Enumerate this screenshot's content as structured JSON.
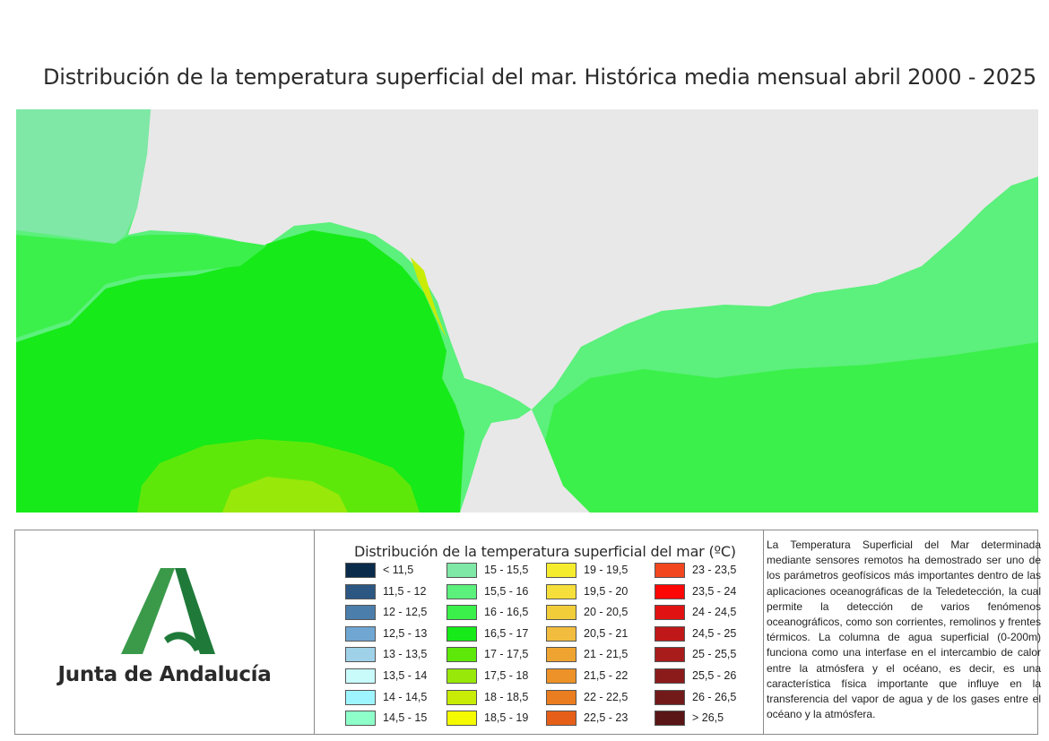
{
  "title": "Distribución de la temperatura superficial del mar. Histórica media mensual abril 2000 - 2025",
  "logo": {
    "text": "Junta de Andalucía",
    "colors": {
      "dark": "#1f7a3a",
      "light": "#3a9a4a"
    }
  },
  "map": {
    "land_color": "#e8e8e8",
    "water_colors": {
      "15_15_5": "#7fe8a6",
      "15_5_16": "#5cf07c",
      "16_16_5": "#3bf04a",
      "16_5_17": "#16ea18",
      "17_17_5": "#5ee80a",
      "17_5_18": "#98e80a",
      "18_18_5": "#c8ec06"
    }
  },
  "legend": {
    "title": "Distribución de la temperatura superficial del mar (ºC)",
    "items": [
      {
        "label": "< 11,5",
        "color": "#0b2b4b"
      },
      {
        "label": "11,5 - 12",
        "color": "#2c5783"
      },
      {
        "label": "12 - 12,5",
        "color": "#4b7eaa"
      },
      {
        "label": "12,5 - 13",
        "color": "#70a6d2"
      },
      {
        "label": "13 - 13,5",
        "color": "#9fd1e9"
      },
      {
        "label": "13,5 - 14",
        "color": "#c9fbfb"
      },
      {
        "label": "14 - 14,5",
        "color": "#9ff5ff"
      },
      {
        "label": "14,5 - 15",
        "color": "#8effc9"
      },
      {
        "label": "15 - 15,5",
        "color": "#7fe8a6"
      },
      {
        "label": "15,5 - 16",
        "color": "#5cf07c"
      },
      {
        "label": "16 - 16,5",
        "color": "#3bf04a"
      },
      {
        "label": "16,5 - 17",
        "color": "#16ea18"
      },
      {
        "label": "17 - 17,5",
        "color": "#5ee80a"
      },
      {
        "label": "17,5 - 18",
        "color": "#98e80a"
      },
      {
        "label": "18 - 18,5",
        "color": "#c8ec06"
      },
      {
        "label": "18,5 - 19",
        "color": "#f4fa00"
      },
      {
        "label": "19 - 19,5",
        "color": "#f6ec2e"
      },
      {
        "label": "19,5 - 20",
        "color": "#f6df3a"
      },
      {
        "label": "20 - 20,5",
        "color": "#f2cd3a"
      },
      {
        "label": "20,5 - 21",
        "color": "#f2bd3e"
      },
      {
        "label": "21 - 21,5",
        "color": "#efa432"
      },
      {
        "label": "21,5 - 22",
        "color": "#ec9228"
      },
      {
        "label": "22 - 22,5",
        "color": "#e97d1f"
      },
      {
        "label": "22,5 - 23",
        "color": "#e65f19"
      },
      {
        "label": "23 - 23,5",
        "color": "#f2461e"
      },
      {
        "label": "23,5 - 24",
        "color": "#fc0606"
      },
      {
        "label": "24 - 24,5",
        "color": "#e11212"
      },
      {
        "label": "24,5 - 25",
        "color": "#c01818"
      },
      {
        "label": "25 - 25,5",
        "color": "#a81c1c"
      },
      {
        "label": "25,5 - 26",
        "color": "#8b1b1b"
      },
      {
        "label": "26 - 26,5",
        "color": "#721a1a"
      },
      {
        "label": "> 26,5",
        "color": "#5a1616"
      }
    ]
  },
  "description": "La Temperatura Superficial del Mar determinada mediante sensores remotos ha demostrado ser uno de los parámetros geofísicos más importantes dentro de las aplicaciones oceanográficas de la Teledetección, la cual permite la detección de varios fenómenos oceanográficos, como son corrientes, remolinos y frentes térmicos. La columna de agua superficial (0-200m) funciona como una interfase en el intercambio de calor entre la atmósfera y el océano, es decir, es una característica física importante que influye en la transferencia del vapor de agua y de los gases entre el océano y la atmósfera."
}
